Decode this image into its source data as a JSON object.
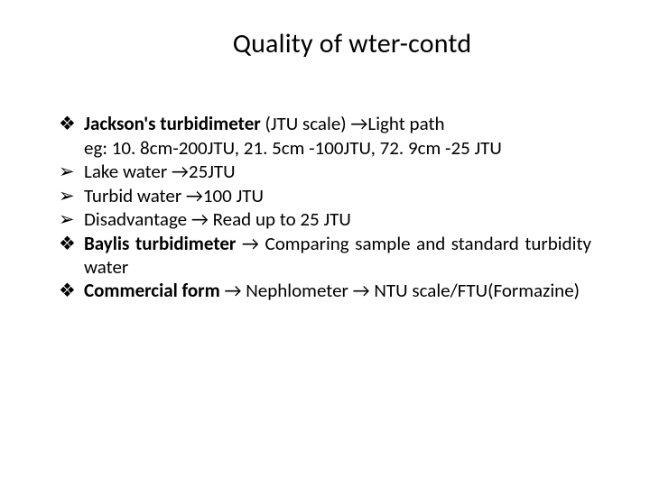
{
  "slide": {
    "title": "Quality of wter-contd",
    "items": [
      {
        "bullet": "❖",
        "segments": [
          {
            "text": "Jackson's turbidimeter",
            "bold": true
          },
          {
            "text": " (JTU scale) →Light path",
            "bold": false
          }
        ],
        "continuation": "eg: 10. 8cm-200JTU, 21. 5cm -100JTU, 72. 9cm -25 JTU",
        "justify": false
      },
      {
        "bullet": "➢",
        "segments": [
          {
            "text": "Lake water →25JTU",
            "bold": false
          }
        ],
        "justify": false
      },
      {
        "bullet": "➢",
        "segments": [
          {
            "text": "Turbid water →100 JTU",
            "bold": false
          }
        ],
        "justify": false
      },
      {
        "bullet": "➢",
        "segments": [
          {
            "text": "Disadvantage → Read up to 25 JTU",
            "bold": false
          }
        ],
        "justify": false
      },
      {
        "bullet": "❖",
        "segments": [
          {
            "text": "Baylis turbidimeter",
            "bold": true
          },
          {
            "text": " → Comparing sample and standard turbidity water",
            "bold": false
          }
        ],
        "justify": true
      },
      {
        "bullet": "❖",
        "segments": [
          {
            "text": "Commercial form",
            "bold": true
          },
          {
            "text": " → Nephlometer → NTU scale/FTU(Formazine)",
            "bold": false
          }
        ],
        "justify": true
      }
    ]
  },
  "style": {
    "background_color": "#ffffff",
    "text_color": "#000000",
    "title_fontsize": 30,
    "body_fontsize": 21,
    "font_family": "Calibri"
  }
}
